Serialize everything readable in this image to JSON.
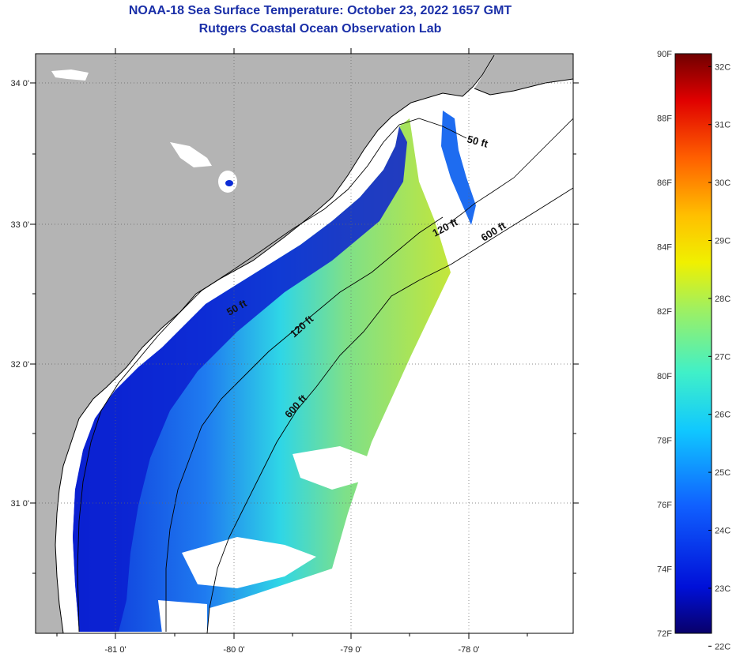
{
  "header": {
    "title_line1": "NOAA-18 Sea Surface Temperature:  October 23, 2022 1657 GMT",
    "title_line2": "Rutgers Coastal Ocean Observation Lab"
  },
  "axes": {
    "lat_labels": [
      "34 0'",
      "33 0'",
      "32 0'",
      "31 0'"
    ],
    "lon_labels": [
      "-81 0'",
      "-80 0'",
      "-79 0'",
      "-78 0'"
    ]
  },
  "contours": {
    "label_50": "50 ft",
    "label_50b": "50 ft",
    "label_120": "120 ft",
    "label_120b": "120 ft",
    "label_600": "600 ft",
    "label_600b": "600 ft"
  },
  "colorbar": {
    "fahrenheit": [
      "90F",
      "88F",
      "86F",
      "84F",
      "82F",
      "80F",
      "78F",
      "76F",
      "74F",
      "72F"
    ],
    "celsius": [
      "32C",
      "31C",
      "30C",
      "29C",
      "28C",
      "27C",
      "26C",
      "25C",
      "24C",
      "23C",
      "22C"
    ]
  },
  "colors": {
    "land": "#b4b4b4",
    "cloud": "#ffffff",
    "title": "#1a2fa8"
  }
}
